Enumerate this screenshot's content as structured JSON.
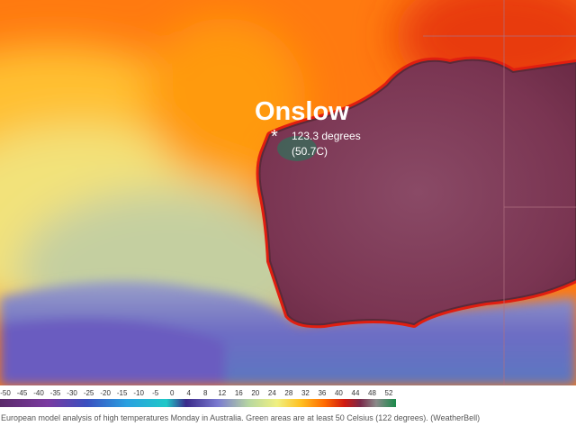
{
  "map": {
    "place": "Onslow",
    "reading": "123.3 degrees",
    "reading_celsius": "(50.7C)"
  },
  "legend": {
    "ticks": [
      -50,
      -45,
      -40,
      -35,
      -30,
      -25,
      -20,
      -15,
      -10,
      -5,
      0,
      4,
      8,
      12,
      16,
      20,
      24,
      28,
      32,
      36,
      40,
      44,
      48,
      52
    ]
  },
  "caption": "European model analysis of high temperatures Monday in Australia. Green areas are at least 50 Celsius (122 degrees). (WeatherBell)"
}
